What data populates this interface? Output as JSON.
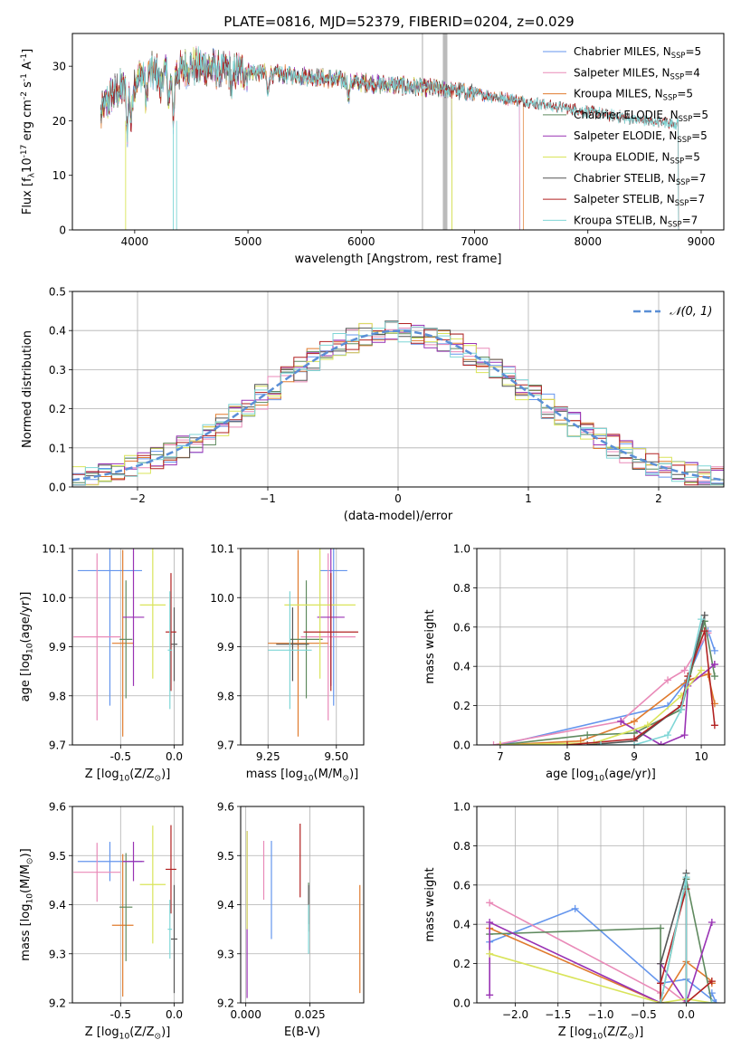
{
  "title": "PLATE=0816, MJD=52379, FIBERID=0204, z=0.029",
  "chart_data": [
    {
      "id": "spectrum",
      "type": "line",
      "xlabel": "wavelength [Angstrom, rest frame]",
      "ylabel": "Flux [f$_\\lambda$10$^{-17}$ erg cm$^{-2}$ s$^{-1}$ A$^{-1}$]",
      "xlim": [
        3450,
        9200
      ],
      "ylim": [
        0,
        36
      ],
      "xticks": [
        4000,
        5000,
        6000,
        7000,
        8000,
        9000
      ],
      "yticks": [
        0,
        10,
        20,
        30
      ],
      "grid": false,
      "legend_position": "top-right",
      "continuum_points": [
        [
          3700,
          21
        ],
        [
          3800,
          25
        ],
        [
          3900,
          26
        ],
        [
          4000,
          27
        ],
        [
          4100,
          29
        ],
        [
          4300,
          28.5
        ],
        [
          4500,
          30
        ],
        [
          4700,
          29.5
        ],
        [
          5000,
          29
        ],
        [
          5300,
          28.5
        ],
        [
          5600,
          28
        ],
        [
          6000,
          27
        ],
        [
          6300,
          26.5
        ],
        [
          6600,
          26
        ],
        [
          6800,
          25.7
        ],
        [
          7000,
          25
        ],
        [
          7300,
          24
        ],
        [
          7600,
          23
        ],
        [
          7900,
          22
        ],
        [
          8200,
          21
        ],
        [
          8500,
          20
        ],
        [
          8800,
          19.5
        ],
        [
          9000,
          19
        ]
      ],
      "series": [
        {
          "name": "Chabrier MILES, N$_{SSP}$=5",
          "color": "#6495ed",
          "end": 7400
        },
        {
          "name": "Salpeter MILES, N$_{SSP}$=4",
          "color": "#e98ab8",
          "end": 7400
        },
        {
          "name": "Kroupa MILES, N$_{SSP}$=5",
          "color": "#e07b2e",
          "end": 7430
        },
        {
          "name": "Chabrier ELODIE, N$_{SSP}$=5",
          "color": "#5f8a5f",
          "end": 6800
        },
        {
          "name": "Salpeter ELODIE, N$_{SSP}$=5",
          "color": "#9932b4",
          "end": 6800
        },
        {
          "name": "Kroupa ELODIE, N$_{SSP}$=5",
          "color": "#d9e45a",
          "end": 6800
        },
        {
          "name": "Chabrier STELIB, N$_{SSP}$=7",
          "color": "#555555",
          "end": 8800
        },
        {
          "name": "Salpeter STELIB, N$_{SSP}$=7",
          "color": "#b22222",
          "end": 8800
        },
        {
          "name": "Kroupa STELIB, N$_{SSP}$=7",
          "color": "#7fd6d6",
          "end": 8800
        }
      ]
    },
    {
      "id": "residual_histogram",
      "type": "line",
      "xlabel": "(data-model)/error",
      "ylabel": "Normed distribution",
      "xlim": [
        -2.5,
        2.5
      ],
      "ylim": [
        0,
        0.5
      ],
      "xticks": [
        -2,
        -1,
        0,
        1,
        2
      ],
      "yticks": [
        0.0,
        0.1,
        0.2,
        0.3,
        0.4,
        0.5
      ],
      "grid": true,
      "legend_position": "top-right",
      "reference_curve": "$\\mathcal{N}(0,1)$",
      "bin_width": 0.1
    },
    {
      "id": "age_vs_Z",
      "type": "scatter",
      "xlabel": "Z [log$_{10}$(Z/Z$_\\odot$)]",
      "ylabel": "age  [log$_{10}$(age/yr)]",
      "xlim": [
        -0.95,
        0.08
      ],
      "ylim": [
        9.7,
        10.1
      ],
      "xticks": [
        -0.5,
        0.0
      ],
      "yticks": [
        9.7,
        9.8,
        9.9,
        10.0,
        10.1
      ],
      "grid": true,
      "points": [
        {
          "x": -0.6,
          "y": 10.055,
          "xerr": 0.3,
          "yerr": 0.275
        },
        {
          "x": -0.72,
          "y": 9.92,
          "xerr": 0.22,
          "yerr": 0.17
        },
        {
          "x": -0.48,
          "y": 9.907,
          "xerr": 0.1,
          "yerr": 0.19
        },
        {
          "x": -0.45,
          "y": 9.915,
          "xerr": 0.06,
          "yerr": 0.12
        },
        {
          "x": -0.38,
          "y": 9.96,
          "xerr": 0.1,
          "yerr": 0.14
        },
        {
          "x": -0.2,
          "y": 9.985,
          "xerr": 0.12,
          "yerr": 0.15
        },
        {
          "x": 0.0,
          "y": 9.905,
          "xerr": 0.03,
          "yerr": 0.075
        },
        {
          "x": -0.03,
          "y": 9.93,
          "xerr": 0.05,
          "yerr": 0.12
        },
        {
          "x": -0.04,
          "y": 9.893,
          "xerr": 0.02,
          "yerr": 0.12
        }
      ]
    },
    {
      "id": "age_vs_mass",
      "type": "scatter",
      "xlabel": "mass [log$_{10}$(M/M$_\\odot$)]",
      "ylabel": "",
      "xlim": [
        9.15,
        9.6
      ],
      "ylim": [
        9.7,
        10.1
      ],
      "xticks": [
        9.25,
        9.5
      ],
      "yticks": [
        9.7,
        9.8,
        9.9,
        10.0,
        10.1
      ],
      "grid": true,
      "points": [
        {
          "x": 9.49,
          "y": 10.055,
          "xerr": 0.05,
          "yerr": 0.275
        },
        {
          "x": 9.47,
          "y": 9.92,
          "xerr": 0.1,
          "yerr": 0.17
        },
        {
          "x": 9.36,
          "y": 9.907,
          "xerr": 0.11,
          "yerr": 0.19
        },
        {
          "x": 9.39,
          "y": 9.915,
          "xerr": 0.06,
          "yerr": 0.12
        },
        {
          "x": 9.48,
          "y": 9.96,
          "xerr": 0.05,
          "yerr": 0.14
        },
        {
          "x": 9.44,
          "y": 9.985,
          "xerr": 0.13,
          "yerr": 0.15
        },
        {
          "x": 9.34,
          "y": 9.905,
          "xerr": 0.06,
          "yerr": 0.075
        },
        {
          "x": 9.48,
          "y": 9.93,
          "xerr": 0.1,
          "yerr": 0.12
        },
        {
          "x": 9.33,
          "y": 9.893,
          "xerr": 0.08,
          "yerr": 0.12
        }
      ]
    },
    {
      "id": "mass_weight_vs_age",
      "type": "line",
      "xlabel": "age  [log$_{10}$(age/yr)]",
      "ylabel": "mass weight",
      "xlim": [
        6.65,
        10.35
      ],
      "ylim": [
        0,
        1.0
      ],
      "xticks": [
        7,
        8,
        9,
        10
      ],
      "yticks": [
        0.0,
        0.2,
        0.4,
        0.6,
        0.8,
        1.0
      ],
      "grid": true,
      "series": [
        {
          "x": [
            7.0,
            9.5,
            9.75,
            10.1,
            10.2
          ],
          "y": [
            0.0,
            0.2,
            0.31,
            0.58,
            0.48
          ]
        },
        {
          "x": [
            6.9,
            8.8,
            9.5,
            9.75,
            10.1
          ],
          "y": [
            0.0,
            0.12,
            0.33,
            0.38,
            0.57
          ]
        },
        {
          "x": [
            7.0,
            8.2,
            9.0,
            9.8,
            10.1,
            10.2
          ],
          "y": [
            0.0,
            0.02,
            0.12,
            0.33,
            0.36,
            0.21
          ]
        },
        {
          "x": [
            7.0,
            8.3,
            9.0,
            9.7,
            10.05,
            10.2
          ],
          "y": [
            0.0,
            0.05,
            0.06,
            0.18,
            0.63,
            0.35
          ]
        },
        {
          "x": [
            8.8,
            9.4,
            9.75,
            9.8,
            10.2,
            10.2
          ],
          "y": [
            0.12,
            0.0,
            0.05,
            0.3,
            0.41,
            0.41
          ]
        },
        {
          "x": [
            7.0,
            8.4,
            9.2,
            9.7,
            10.0
          ],
          "y": [
            0.0,
            0.01,
            0.1,
            0.25,
            0.38
          ]
        },
        {
          "x": [
            8.3,
            9.0,
            9.7,
            10.05
          ],
          "y": [
            0.0,
            0.02,
            0.2,
            0.66
          ]
        },
        {
          "x": [
            8.0,
            9.0,
            9.7,
            9.8,
            10.05,
            10.2
          ],
          "y": [
            0.0,
            0.03,
            0.2,
            0.35,
            0.58,
            0.1
          ]
        },
        {
          "x": [
            8.5,
            9.0,
            9.5,
            9.7,
            10.0
          ],
          "y": [
            0.0,
            0.0,
            0.05,
            0.18,
            0.64
          ]
        }
      ]
    },
    {
      "id": "mass_vs_Z",
      "type": "scatter",
      "xlabel": "Z [log$_{10}$(Z/Z$_\\odot$)]",
      "ylabel": "mass [log$_{10}$(M/M$_\\odot$)]",
      "xlim": [
        -0.95,
        0.08
      ],
      "ylim": [
        9.2,
        9.6
      ],
      "xticks": [
        -0.5,
        0.0
      ],
      "yticks": [
        9.2,
        9.3,
        9.4,
        9.5,
        9.6
      ],
      "grid": true,
      "points": [
        {
          "x": -0.6,
          "y": 9.488,
          "xerr": 0.3,
          "yerr": 0.04
        },
        {
          "x": -0.72,
          "y": 9.466,
          "xerr": 0.22,
          "yerr": 0.06
        },
        {
          "x": -0.48,
          "y": 9.358,
          "xerr": 0.1,
          "yerr": 0.145
        },
        {
          "x": -0.45,
          "y": 9.395,
          "xerr": 0.06,
          "yerr": 0.11
        },
        {
          "x": -0.38,
          "y": 9.488,
          "xerr": 0.1,
          "yerr": 0.04
        },
        {
          "x": -0.2,
          "y": 9.441,
          "xerr": 0.12,
          "yerr": 0.12
        },
        {
          "x": 0.0,
          "y": 9.33,
          "xerr": 0.03,
          "yerr": 0.11
        },
        {
          "x": -0.03,
          "y": 9.472,
          "xerr": 0.05,
          "yerr": 0.09
        },
        {
          "x": -0.04,
          "y": 9.35,
          "xerr": 0.02,
          "yerr": 0.06
        }
      ]
    },
    {
      "id": "mass_vs_ebv",
      "type": "scatter",
      "xlabel": "E(B-V)",
      "ylabel": "",
      "xlim": [
        -0.002,
        0.046
      ],
      "ylim": [
        9.2,
        9.6
      ],
      "xticks": [
        0.0,
        0.025
      ],
      "xticklabels": [
        "0.000",
        "0.025"
      ],
      "yticks": [
        9.2,
        9.3,
        9.4,
        9.5,
        9.6
      ],
      "grid": true,
      "points": [
        {
          "x": 0.01,
          "y": 9.43,
          "xerr": 0.0,
          "yerr": 0.1
        },
        {
          "x": 0.007,
          "y": 9.47,
          "xerr": 0.0,
          "yerr": 0.06
        },
        {
          "x": 0.0445,
          "y": 9.33,
          "xerr": 0.0,
          "yerr": 0.11
        },
        {
          "x": 0.0245,
          "y": 9.395,
          "xerr": 0.0,
          "yerr": 0.05
        },
        {
          "x": 0.0005,
          "y": 9.38,
          "xerr": 0.0,
          "yerr": 0.17
        },
        {
          "x": 0.0005,
          "y": 9.45,
          "xerr": 0.0,
          "yerr": 0.1
        },
        {
          "x": 0.0245,
          "y": 9.4,
          "xerr": 0.0,
          "yerr": 0.04
        },
        {
          "x": 0.0212,
          "y": 9.49,
          "xerr": 0.0,
          "yerr": 0.075
        },
        {
          "x": 0.0245,
          "y": 9.35,
          "xerr": 0.0,
          "yerr": 0.05
        }
      ]
    },
    {
      "id": "mass_weight_vs_Z",
      "type": "line",
      "xlabel": "Z [log$_{10}$(Z/Z$_\\odot$)]",
      "ylabel": "mass weight",
      "xlim": [
        -2.45,
        0.45
      ],
      "ylim": [
        0,
        1.0
      ],
      "xticks": [
        -2.0,
        -1.5,
        -1.0,
        -0.5,
        0.0
      ],
      "yticks": [
        0.0,
        0.2,
        0.4,
        0.6,
        0.8,
        1.0
      ],
      "grid": true,
      "series": [
        {
          "x": [
            -2.3,
            -1.3,
            -0.3,
            0.0,
            0.35,
            0.3
          ],
          "y": [
            0.31,
            0.48,
            0.1,
            0.12,
            0.0,
            0.05
          ]
        },
        {
          "x": [
            -2.3,
            -0.3,
            -0.3,
            0.0,
            0.0
          ],
          "y": [
            0.51,
            0.05,
            0.1,
            0.0,
            0.6
          ]
        },
        {
          "x": [
            -2.3,
            -0.3,
            0.0,
            0.3,
            0.3
          ],
          "y": [
            0.38,
            0.0,
            0.21,
            0.11,
            0.1
          ]
        },
        {
          "x": [
            -2.3,
            -0.3,
            -0.3,
            0.0,
            0.3
          ],
          "y": [
            0.35,
            0.38,
            0.0,
            0.63,
            0.0
          ]
        },
        {
          "x": [
            -2.3,
            -2.3,
            -0.3,
            -0.3,
            0.0,
            0.3
          ],
          "y": [
            0.04,
            0.41,
            0.0,
            0.2,
            0.0,
            0.41
          ]
        },
        {
          "x": [
            -2.3,
            -0.3,
            0.0,
            0.3
          ],
          "y": [
            0.25,
            0.0,
            0.02,
            0.0
          ]
        },
        {
          "x": [
            -0.3,
            -0.3,
            0.0,
            0.0
          ],
          "y": [
            0.0,
            0.2,
            0.66,
            0.0
          ]
        },
        {
          "x": [
            -0.3,
            -0.3,
            0.0,
            0.0,
            0.3
          ],
          "y": [
            0.0,
            0.1,
            0.58,
            0.0,
            0.11
          ]
        },
        {
          "x": [
            -0.3,
            0.0,
            0.0,
            0.3
          ],
          "y": [
            0.0,
            0.64,
            0.0,
            0.0
          ]
        }
      ]
    }
  ]
}
